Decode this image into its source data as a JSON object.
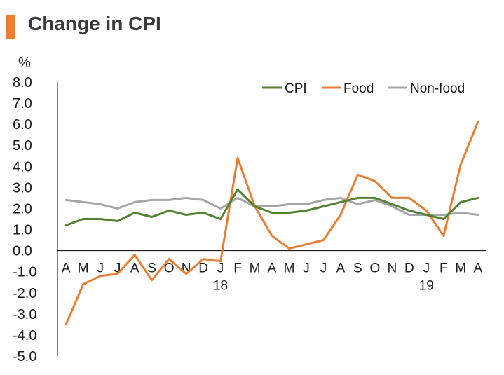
{
  "title": "Change in CPI",
  "colors": {
    "accent": "#ED7D31"
  },
  "chart_data": {
    "type": "line",
    "title": "Change in CPI",
    "ylabel": "%",
    "xlabel": "",
    "ylim": [
      -5.0,
      8.0
    ],
    "yticks": [
      "8.0",
      "7.0",
      "6.0",
      "5.0",
      "4.0",
      "3.0",
      "2.0",
      "1.0",
      "0.0",
      "-1.0",
      "-2.0",
      "-3.0",
      "-4.0",
      "-5.0"
    ],
    "categories": [
      "A",
      "M",
      "J",
      "J",
      "A",
      "S",
      "O",
      "N",
      "D",
      "J",
      "F",
      "M",
      "A",
      "M",
      "J",
      "J",
      "A",
      "S",
      "O",
      "N",
      "D",
      "J",
      "F",
      "M",
      "A"
    ],
    "year_labels": [
      {
        "index": 9,
        "text": "18"
      },
      {
        "index": 21,
        "text": "19"
      }
    ],
    "legend_position": "top-right",
    "grid": false,
    "series": [
      {
        "name": "CPI",
        "color": "#548235",
        "values": [
          1.2,
          1.5,
          1.5,
          1.4,
          1.8,
          1.6,
          1.9,
          1.7,
          1.8,
          1.5,
          2.9,
          2.1,
          1.8,
          1.8,
          1.9,
          2.1,
          2.3,
          2.5,
          2.5,
          2.2,
          1.9,
          1.7,
          1.5,
          2.3,
          2.5
        ]
      },
      {
        "name": "Food",
        "color": "#ED7D31",
        "values": [
          -3.5,
          -1.6,
          -1.2,
          -1.1,
          -0.2,
          -1.4,
          -0.4,
          -1.1,
          -0.4,
          -0.5,
          4.4,
          2.1,
          0.7,
          0.1,
          0.3,
          0.5,
          1.7,
          3.6,
          3.3,
          2.5,
          2.5,
          1.9,
          0.7,
          4.1,
          6.1
        ]
      },
      {
        "name": "Non-food",
        "color": "#A6A6A6",
        "values": [
          2.4,
          2.3,
          2.2,
          2.0,
          2.3,
          2.4,
          2.4,
          2.5,
          2.4,
          2.0,
          2.5,
          2.1,
          2.1,
          2.2,
          2.2,
          2.4,
          2.5,
          2.2,
          2.4,
          2.1,
          1.7,
          1.7,
          1.7,
          1.8,
          1.7
        ]
      }
    ]
  }
}
